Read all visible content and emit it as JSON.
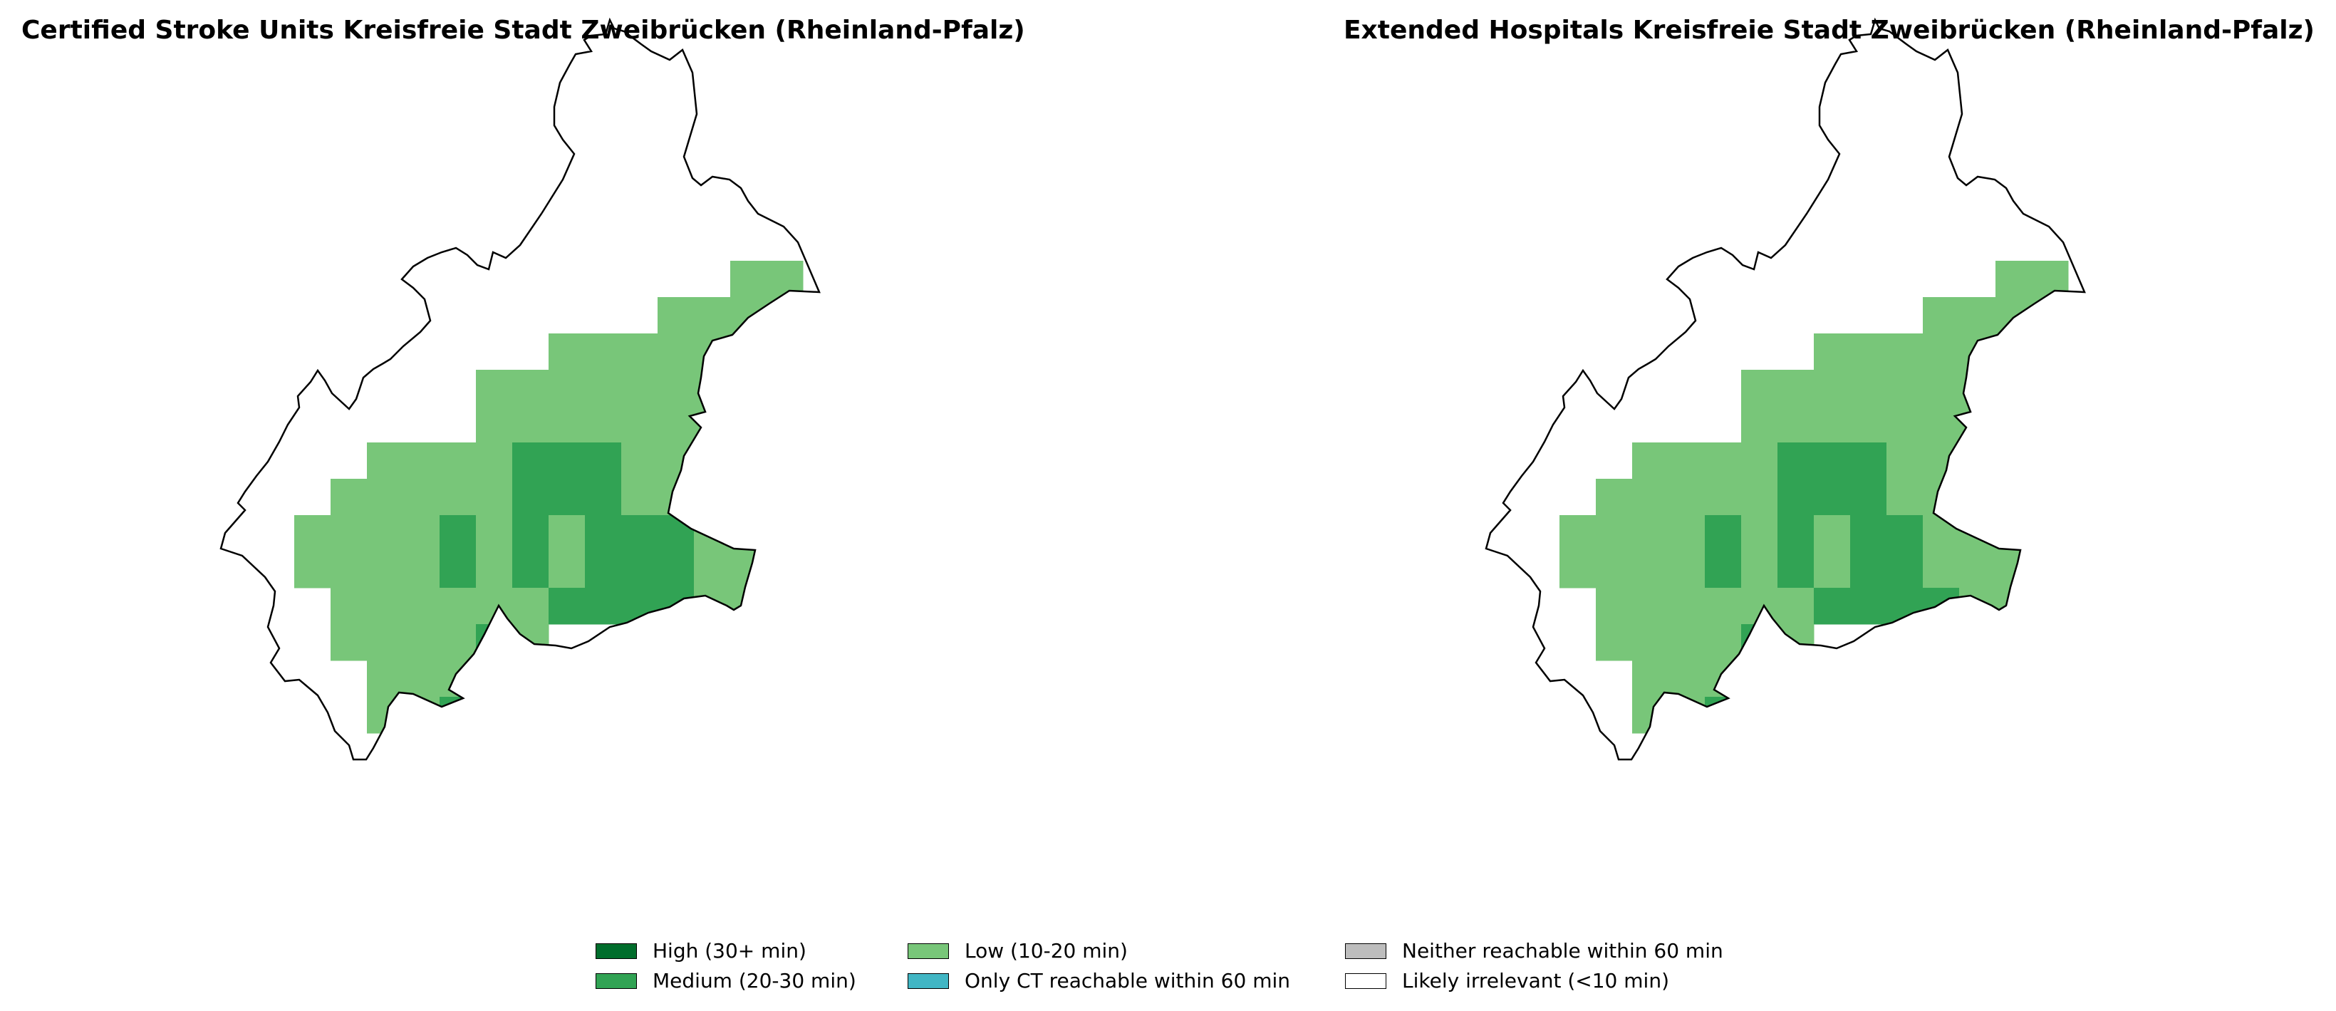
{
  "panels": [
    {
      "title": "Certified Stroke Units Kreisfreie Stadt Zweibrücken (Rheinland-Pfalz)"
    },
    {
      "title": "Extended Hospitals Kreisfreie Stadt Zweibrücken (Rheinland-Pfalz)"
    }
  ],
  "legend": {
    "items": [
      {
        "label": "High (30+ min)",
        "color": "#006d2c"
      },
      {
        "label": "Medium (20-30 min)",
        "color": "#31a354"
      },
      {
        "label": "Low (10-20 min)",
        "color": "#78c679"
      },
      {
        "label": "Only CT reachable within 60 min",
        "color": "#41b6c4"
      },
      {
        "label": "Neither reachable within 60 min",
        "color": "#bdbdbd"
      },
      {
        "label": "Likely irrelevant (<10 min)",
        "color": "#ffffff"
      }
    ]
  }
}
